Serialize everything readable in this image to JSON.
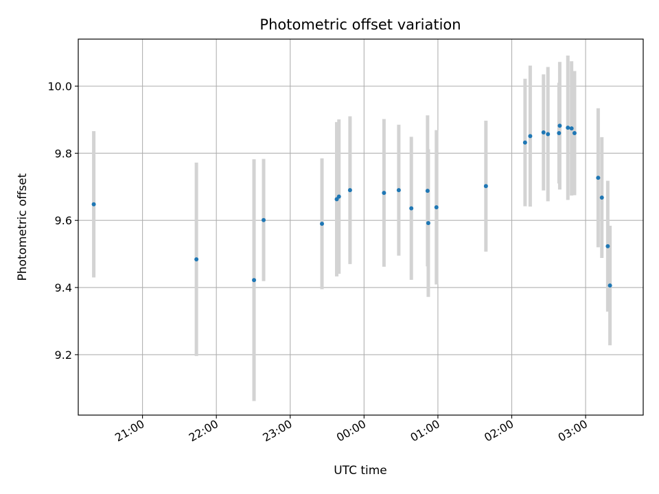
{
  "chart_data": {
    "type": "scatter",
    "title": "Photometric offset variation",
    "xlabel": "UTC time",
    "ylabel": "Photometric offset",
    "x_tick_labels": [
      "21:00",
      "22:00",
      "23:00",
      "00:00",
      "01:00",
      "02:00",
      "03:00"
    ],
    "x_ticks_hours": [
      21,
      22,
      23,
      24,
      25,
      26,
      27
    ],
    "xlim_hours": [
      20.13,
      27.78
    ],
    "y_ticks": [
      9.2,
      9.4,
      9.6,
      9.8,
      10.0
    ],
    "ylim": [
      9.02,
      10.14
    ],
    "grid": true,
    "point_color": "#1f77b4",
    "errorbar_color": "#d3d3d3",
    "x_time_labels_rotated": true,
    "points": [
      {
        "t": "20:20",
        "x": 20.34,
        "y": 9.648,
        "err": 0.218
      },
      {
        "t": "21:43",
        "x": 21.73,
        "y": 9.484,
        "err": 0.288
      },
      {
        "t": "22:30",
        "x": 22.51,
        "y": 9.422,
        "err": 0.36
      },
      {
        "t": "22:38",
        "x": 22.64,
        "y": 9.601,
        "err": 0.182
      },
      {
        "t": "23:26",
        "x": 23.43,
        "y": 9.59,
        "err": 0.195
      },
      {
        "t": "23:38",
        "x": 23.63,
        "y": 9.663,
        "err": 0.23
      },
      {
        "t": "23:40",
        "x": 23.66,
        "y": 9.671,
        "err": 0.23
      },
      {
        "t": "23:49",
        "x": 23.81,
        "y": 9.69,
        "err": 0.22
      },
      {
        "t": "00:16",
        "x": 24.27,
        "y": 9.682,
        "err": 0.22
      },
      {
        "t": "00:28",
        "x": 24.47,
        "y": 9.69,
        "err": 0.195
      },
      {
        "t": "00:38",
        "x": 24.64,
        "y": 9.636,
        "err": 0.213
      },
      {
        "t": "00:52",
        "x": 24.86,
        "y": 9.688,
        "err": 0.225
      },
      {
        "t": "00:52",
        "x": 24.87,
        "y": 9.592,
        "err": 0.22
      },
      {
        "t": "00:59",
        "x": 24.98,
        "y": 9.639,
        "err": 0.23
      },
      {
        "t": "01:39",
        "x": 25.65,
        "y": 9.702,
        "err": 0.195
      },
      {
        "t": "02:11",
        "x": 26.18,
        "y": 9.832,
        "err": 0.19
      },
      {
        "t": "02:15",
        "x": 26.25,
        "y": 9.851,
        "err": 0.21
      },
      {
        "t": "02:25",
        "x": 26.43,
        "y": 9.862,
        "err": 0.173
      },
      {
        "t": "02:29",
        "x": 26.49,
        "y": 9.857,
        "err": 0.2
      },
      {
        "t": "02:38",
        "x": 26.64,
        "y": 9.86,
        "err": 0.15
      },
      {
        "t": "02:39",
        "x": 26.65,
        "y": 9.882,
        "err": 0.19
      },
      {
        "t": "02:45",
        "x": 26.76,
        "y": 9.876,
        "err": 0.215
      },
      {
        "t": "02:49",
        "x": 26.81,
        "y": 9.874,
        "err": 0.2
      },
      {
        "t": "02:51",
        "x": 26.85,
        "y": 9.86,
        "err": 0.185
      },
      {
        "t": "03:10",
        "x": 27.17,
        "y": 9.727,
        "err": 0.207
      },
      {
        "t": "03:13",
        "x": 27.22,
        "y": 9.668,
        "err": 0.18
      },
      {
        "t": "03:18",
        "x": 27.3,
        "y": 9.523,
        "err": 0.195
      },
      {
        "t": "03:20",
        "x": 27.33,
        "y": 9.406,
        "err": 0.178
      }
    ]
  }
}
